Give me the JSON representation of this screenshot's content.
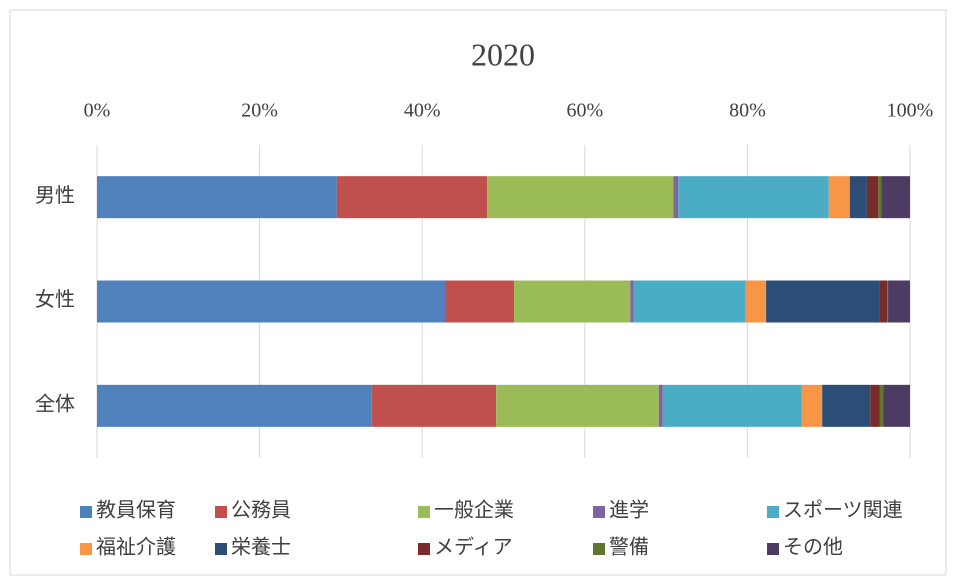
{
  "chart_data": {
    "type": "stacked_barh",
    "title": "2020",
    "categories": [
      "男性",
      "女性",
      "全体"
    ],
    "series": [
      {
        "name": "教員保育",
        "color": "#4f81bd",
        "values": [
          29.5,
          42.8,
          33.8
        ]
      },
      {
        "name": "公務員",
        "color": "#c0504d",
        "values": [
          18.5,
          8.5,
          15.3
        ]
      },
      {
        "name": "一般企業",
        "color": "#9bbb59",
        "values": [
          22.9,
          14.3,
          20.0
        ]
      },
      {
        "name": "進学",
        "color": "#8064a2",
        "values": [
          0.6,
          0.4,
          0.5
        ]
      },
      {
        "name": "スポーツ関連",
        "color": "#4bacc6",
        "values": [
          18.5,
          13.8,
          17.1
        ]
      },
      {
        "name": "福祉介護",
        "color": "#f79646",
        "values": [
          2.6,
          2.5,
          2.5
        ]
      },
      {
        "name": "栄養士",
        "color": "#2c4d75",
        "values": [
          2.1,
          14.0,
          5.9
        ]
      },
      {
        "name": "メディア",
        "color": "#772c2a",
        "values": [
          1.4,
          0.9,
          1.2
        ]
      },
      {
        "name": "警備",
        "color": "#5f7530",
        "values": [
          0.4,
          0.1,
          0.4
        ]
      },
      {
        "name": "その他",
        "color": "#4d3b62",
        "values": [
          3.5,
          2.7,
          3.3
        ]
      }
    ],
    "xlim": [
      0,
      100
    ],
    "xticks": [
      {
        "value": 0,
        "label": "0%"
      },
      {
        "value": 20,
        "label": "20%"
      },
      {
        "value": 40,
        "label": "40%"
      },
      {
        "value": 60,
        "label": "60%"
      },
      {
        "value": 80,
        "label": "80%"
      },
      {
        "value": 100,
        "label": "100%"
      }
    ],
    "grid": true,
    "legend": "bottom"
  }
}
